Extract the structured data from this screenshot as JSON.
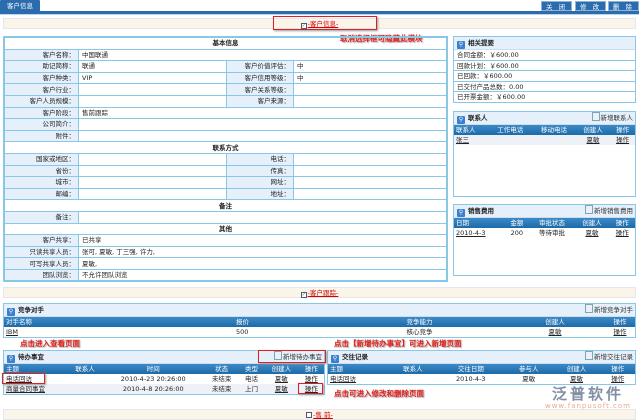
{
  "tab": "客户信息",
  "buttons": {
    "close": "关 闭",
    "edit": "修 改",
    "delete": "删 除"
  },
  "sections": {
    "customer_info": "-客户信息-",
    "customer_tracking": "-客户跟踪-",
    "presales": "-售 前-"
  },
  "annotations": {
    "hide_module": "取消选择框可隐藏此模块",
    "view_page": "点击进入查看页面",
    "add_todo": "点击【新增待办事宜】可进入新增页面",
    "edit_delete": "点击可进入修改和删除页面"
  },
  "basic": {
    "title": "基本信息",
    "name_label": "客户名称：",
    "name": "中国联通",
    "short_label": "助记简称：",
    "short": "联通",
    "value_label": "客户价值评估：",
    "value": "中",
    "type_label": "客户种类：",
    "type": "VIP",
    "credit_label": "客户信用等级：",
    "credit": "中",
    "industry_label": "客户行业：",
    "industry": "",
    "relation_label": "客户关系等级：",
    "relation": "",
    "size_label": "客户人员规模：",
    "size": "",
    "source_label": "客户来源：",
    "source": "",
    "stage_label": "客户阶段：",
    "stage": "售前跟踪",
    "intro_label": "公司简介：",
    "intro": "",
    "attach_label": "附件：",
    "attach": ""
  },
  "contact": {
    "title": "联系方式",
    "country_label": "国家或地区：",
    "phone_label": "电话：",
    "province_label": "省份：",
    "fax_label": "传真：",
    "city_label": "城市：",
    "web_label": "网址：",
    "zip_label": "邮编：",
    "addr_label": "地址："
  },
  "remark": {
    "title": "备注",
    "label": "备注：",
    "value": ""
  },
  "other": {
    "title": "其他",
    "share_label": "客户共享：",
    "share": "已共享",
    "ro_label": "只读共享人员：",
    "ro": "张可, 夏敏, 丁三强, 许力,",
    "rw_label": "可写共享人员：",
    "rw": "夏敏,",
    "team_label": "团队浏览：",
    "team": "不允许团队浏览"
  },
  "summary": {
    "title": "相关提要",
    "items": [
      "合同金额：￥600.00",
      "回款计划：￥600.00",
      "已回款：￥600.00",
      "已交付产品总数：0.00",
      "已开票金额：￥600.00"
    ]
  },
  "contacts": {
    "title": "联系人",
    "add": "新增联系人",
    "headers": [
      "联系人",
      "工作电话",
      "移动电话",
      "创建人",
      "操作"
    ],
    "rows": [
      [
        "张三",
        "",
        "",
        "夏敏",
        "操作"
      ]
    ]
  },
  "expenses": {
    "title": "销售费用",
    "add": "新增销售费用",
    "headers": [
      "日期",
      "金额",
      "审批状态",
      "创建人",
      "操作"
    ],
    "rows": [
      [
        "2010-4-3",
        "200",
        "等待审批",
        "夏敏",
        "操作"
      ]
    ]
  },
  "competitors": {
    "title": "竞争对手",
    "add": "新增竞争对手",
    "headers": [
      "对手名称",
      "报价",
      "竞争能力",
      "创建人",
      "操作"
    ],
    "rows": [
      [
        "IBM",
        "500",
        "核心竞争",
        "夏敏",
        "操作"
      ]
    ]
  },
  "todos": {
    "title": "待办事宜",
    "add": "新增待办事宜",
    "headers": [
      "主题",
      "联系人",
      "时间",
      "状态",
      "类型",
      "创建人",
      "操作"
    ],
    "rows": [
      [
        "电话回访",
        "",
        "2010-4-23 20:26:00",
        "未结束",
        "电话",
        "夏敏",
        "操作"
      ],
      [
        "商量合同事宜",
        "",
        "2010-4-8 20:26:00",
        "未结束",
        "上门",
        "夏敏",
        "操作"
      ]
    ]
  },
  "records": {
    "title": "交往记录",
    "add": "新增交往记录",
    "headers": [
      "主题",
      "联系人",
      "交往日期",
      "参与人",
      "创建人",
      "操作"
    ],
    "rows": [
      [
        "电话回访",
        "",
        "2010-4-3",
        "夏敏",
        "夏敏",
        "操作"
      ]
    ]
  },
  "watermark": {
    "name": "泛普软件",
    "url": "www.fanpusoft.com"
  }
}
